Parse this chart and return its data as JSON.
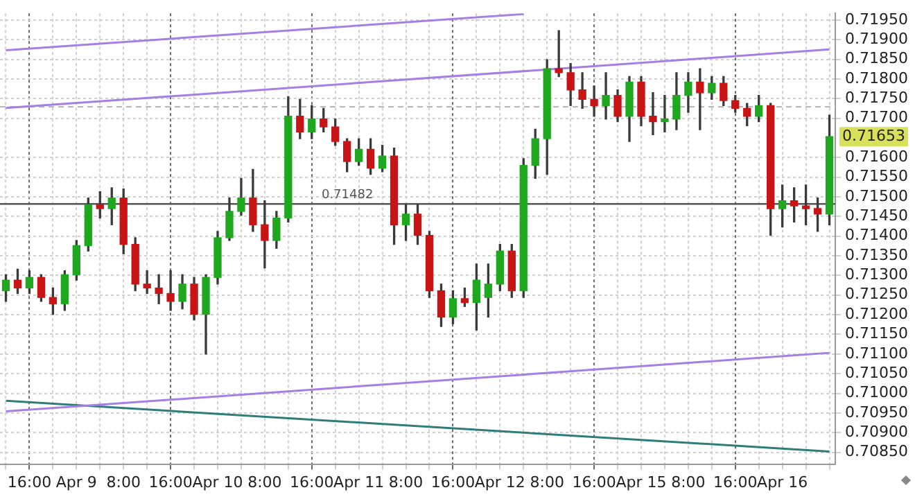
{
  "chart_data": {
    "type": "candlestick",
    "categories": [
      null,
      null,
      "16:00",
      null,
      null,
      null,
      "Apr 9",
      null,
      null,
      null,
      "8:00",
      null,
      null,
      null,
      "16:00",
      null,
      null,
      null,
      "Apr 10",
      null,
      null,
      null,
      "8:00",
      null,
      null,
      null,
      "16:00",
      null,
      null,
      null,
      "Apr 11",
      null,
      null,
      null,
      "8:00",
      null,
      null,
      null,
      "16:00",
      null,
      null,
      null,
      "Apr 12",
      null,
      null,
      null,
      "8:00",
      null,
      null,
      null,
      "16:00",
      null,
      null,
      null,
      "Apr 15",
      null,
      null,
      null,
      "8:00",
      null,
      null,
      null,
      "16:00",
      null,
      null,
      null,
      "Apr 16",
      null,
      null,
      null,
      null
    ],
    "ohlc": [
      [
        0.71261,
        0.71302,
        0.71234,
        0.71288
      ],
      [
        0.71288,
        0.71316,
        0.71254,
        0.71268
      ],
      [
        0.71268,
        0.71312,
        0.71254,
        0.71295
      ],
      [
        0.71295,
        0.71302,
        0.71234,
        0.71244
      ],
      [
        0.71244,
        0.71268,
        0.71201,
        0.71228
      ],
      [
        0.71228,
        0.71312,
        0.71211,
        0.71302
      ],
      [
        0.71302,
        0.71389,
        0.71288,
        0.71376
      ],
      [
        0.71376,
        0.71497,
        0.71362,
        0.7148
      ],
      [
        0.7148,
        0.71513,
        0.71446,
        0.7147
      ],
      [
        0.7147,
        0.71523,
        0.71429,
        0.71497
      ],
      [
        0.71497,
        0.7152,
        0.71355,
        0.71379
      ],
      [
        0.71379,
        0.71396,
        0.71261,
        0.71278
      ],
      [
        0.71278,
        0.71312,
        0.71254,
        0.71268
      ],
      [
        0.71268,
        0.71302,
        0.71228,
        0.71254
      ],
      [
        0.71254,
        0.71312,
        0.71211,
        0.71234
      ],
      [
        0.71234,
        0.71302,
        0.71215,
        0.71278
      ],
      [
        0.71278,
        0.71295,
        0.71187,
        0.71201
      ],
      [
        0.71201,
        0.71302,
        0.711,
        0.71295
      ],
      [
        0.71295,
        0.71412,
        0.71278,
        0.71396
      ],
      [
        0.71396,
        0.71497,
        0.71389,
        0.71463
      ],
      [
        0.71463,
        0.71547,
        0.71453,
        0.71497
      ],
      [
        0.71497,
        0.7157,
        0.71412,
        0.71429
      ],
      [
        0.71429,
        0.7149,
        0.71319,
        0.71389
      ],
      [
        0.71389,
        0.71463,
        0.71369,
        0.71446
      ],
      [
        0.71446,
        0.71755,
        0.71436,
        0.71705
      ],
      [
        0.71705,
        0.71748,
        0.71648,
        0.71665
      ],
      [
        0.71665,
        0.71732,
        0.71648,
        0.71698
      ],
      [
        0.71698,
        0.71725,
        0.71665,
        0.71678
      ],
      [
        0.71678,
        0.71698,
        0.71631,
        0.71641
      ],
      [
        0.71641,
        0.71648,
        0.71564,
        0.7159
      ],
      [
        0.7159,
        0.71648,
        0.7158,
        0.71621
      ],
      [
        0.71621,
        0.71648,
        0.71557,
        0.71573
      ],
      [
        0.71573,
        0.71631,
        0.71564,
        0.71604
      ],
      [
        0.71604,
        0.71624,
        0.71379,
        0.71429
      ],
      [
        0.71429,
        0.7148,
        0.71389,
        0.71456
      ],
      [
        0.71456,
        0.7148,
        0.71379,
        0.71402
      ],
      [
        0.71402,
        0.71412,
        0.71244,
        0.71261
      ],
      [
        0.71261,
        0.71278,
        0.7117,
        0.71194
      ],
      [
        0.71194,
        0.71261,
        0.71177,
        0.71241
      ],
      [
        0.71241,
        0.71268,
        0.71221,
        0.71231
      ],
      [
        0.71231,
        0.71329,
        0.71161,
        0.71288
      ],
      [
        0.71244,
        0.71329,
        0.71194,
        0.71278
      ],
      [
        0.71278,
        0.71379,
        0.71261,
        0.71362
      ],
      [
        0.71362,
        0.71379,
        0.71244,
        0.71261
      ],
      [
        0.71261,
        0.71597,
        0.71244,
        0.7158
      ],
      [
        0.7158,
        0.71672,
        0.71547,
        0.71648
      ],
      [
        0.71648,
        0.71849,
        0.71557,
        0.71826
      ],
      [
        0.71826,
        0.71923,
        0.71806,
        0.71816
      ],
      [
        0.71816,
        0.71839,
        0.71732,
        0.71772
      ],
      [
        0.71772,
        0.71816,
        0.71725,
        0.71748
      ],
      [
        0.71748,
        0.71782,
        0.71705,
        0.71732
      ],
      [
        0.71732,
        0.71816,
        0.71698,
        0.71758
      ],
      [
        0.71758,
        0.71772,
        0.71691,
        0.71705
      ],
      [
        0.71705,
        0.71806,
        0.71641,
        0.71792
      ],
      [
        0.71792,
        0.71806,
        0.71681,
        0.71705
      ],
      [
        0.71705,
        0.71765,
        0.71658,
        0.71691
      ],
      [
        0.71691,
        0.71758,
        0.71665,
        0.71698
      ],
      [
        0.71698,
        0.71816,
        0.71671,
        0.71758
      ],
      [
        0.71758,
        0.71816,
        0.71715,
        0.71792
      ],
      [
        0.71792,
        0.71826,
        0.71671,
        0.71765
      ],
      [
        0.71765,
        0.71806,
        0.71748,
        0.71789
      ],
      [
        0.71789,
        0.71806,
        0.71732,
        0.71745
      ],
      [
        0.71745,
        0.71758,
        0.71715,
        0.71725
      ],
      [
        0.71725,
        0.71738,
        0.71681,
        0.71705
      ],
      [
        0.71705,
        0.71758,
        0.71691,
        0.71732
      ],
      [
        0.71732,
        0.71738,
        0.71402,
        0.7147
      ],
      [
        0.7147,
        0.7153,
        0.71423,
        0.7149
      ],
      [
        0.7149,
        0.71523,
        0.71436,
        0.71477
      ],
      [
        0.71477,
        0.7153,
        0.71429,
        0.7147
      ],
      [
        0.7147,
        0.71497,
        0.71412,
        0.71456
      ],
      [
        0.71456,
        0.71708,
        0.71429,
        0.71653
      ]
    ],
    "series": [
      {
        "type": "line",
        "color": "#a67fe6",
        "values": [
          0.71873,
          null,
          null,
          null,
          null,
          null,
          null,
          null,
          null,
          null,
          null,
          null,
          null,
          null,
          null,
          null,
          null,
          null,
          null,
          null,
          null,
          null,
          null,
          null,
          null,
          null,
          null,
          null,
          null,
          null,
          null,
          null,
          null,
          null,
          null,
          null,
          null,
          null,
          null,
          null,
          null,
          null,
          null,
          null,
          0.71965,
          null,
          null,
          null,
          null,
          null,
          null,
          null,
          null,
          null,
          null,
          null,
          null,
          null,
          null,
          null,
          null,
          null,
          null,
          null,
          null,
          null,
          null,
          null,
          null,
          null,
          null
        ]
      },
      {
        "type": "line",
        "color": "#a67fe6",
        "values": [
          0.71726,
          null,
          null,
          null,
          null,
          null,
          null,
          null,
          null,
          null,
          null,
          null,
          null,
          null,
          null,
          null,
          null,
          null,
          null,
          null,
          null,
          null,
          null,
          null,
          null,
          null,
          null,
          null,
          null,
          null,
          null,
          null,
          null,
          null,
          null,
          null,
          null,
          null,
          null,
          null,
          null,
          null,
          null,
          null,
          null,
          null,
          null,
          null,
          null,
          null,
          null,
          null,
          null,
          null,
          null,
          null,
          null,
          null,
          null,
          null,
          null,
          null,
          null,
          null,
          null,
          null,
          null,
          null,
          null,
          null,
          0.71875
        ]
      },
      {
        "type": "line",
        "color": "#a67fe6",
        "values": [
          0.70954,
          null,
          null,
          null,
          null,
          null,
          null,
          null,
          null,
          null,
          null,
          null,
          null,
          null,
          null,
          null,
          null,
          null,
          null,
          null,
          null,
          null,
          null,
          null,
          null,
          null,
          null,
          null,
          null,
          null,
          null,
          null,
          null,
          null,
          null,
          null,
          null,
          null,
          null,
          null,
          null,
          null,
          null,
          null,
          null,
          null,
          null,
          null,
          null,
          null,
          null,
          null,
          null,
          null,
          null,
          null,
          null,
          null,
          null,
          null,
          null,
          null,
          null,
          null,
          null,
          null,
          null,
          null,
          null,
          null,
          0.71103
        ]
      },
      {
        "type": "line",
        "color": "#2e7d7a",
        "values": [
          0.70981,
          null,
          null,
          null,
          null,
          null,
          null,
          null,
          null,
          null,
          null,
          null,
          null,
          null,
          null,
          null,
          null,
          null,
          null,
          null,
          null,
          null,
          null,
          null,
          null,
          null,
          null,
          null,
          null,
          null,
          null,
          null,
          null,
          null,
          null,
          null,
          null,
          null,
          null,
          null,
          null,
          null,
          null,
          null,
          null,
          null,
          null,
          null,
          null,
          null,
          null,
          null,
          null,
          null,
          null,
          null,
          null,
          null,
          null,
          null,
          null,
          null,
          null,
          null,
          null,
          null,
          null,
          null,
          null,
          null,
          0.70852
        ]
      }
    ],
    "ylim": [
      0.7082,
      0.71967
    ],
    "yticks": [
      {
        "value": 0.7085,
        "label": "0.70850"
      },
      {
        "value": 0.709,
        "label": "0.70900"
      },
      {
        "value": 0.7095,
        "label": "0.70950"
      },
      {
        "value": 0.71,
        "label": "0.71000"
      },
      {
        "value": 0.7105,
        "label": "0.71050"
      },
      {
        "value": 0.711,
        "label": "0.71100"
      },
      {
        "value": 0.7115,
        "label": "0.71150"
      },
      {
        "value": 0.712,
        "label": "0.71200"
      },
      {
        "value": 0.7125,
        "label": "0.71250"
      },
      {
        "value": 0.713,
        "label": "0.71300"
      },
      {
        "value": 0.7135,
        "label": "0.71350"
      },
      {
        "value": 0.714,
        "label": "0.71400"
      },
      {
        "value": 0.7145,
        "label": "0.71450"
      },
      {
        "value": 0.715,
        "label": "0.71500"
      },
      {
        "value": 0.7155,
        "label": "0.71550"
      },
      {
        "value": 0.716,
        "label": "0.71600"
      },
      {
        "value": 0.717,
        "label": "0.71700"
      },
      {
        "value": 0.7175,
        "label": "0.71750"
      },
      {
        "value": 0.718,
        "label": "0.71800"
      },
      {
        "value": 0.7185,
        "label": "0.71850"
      },
      {
        "value": 0.719,
        "label": "0.71900"
      },
      {
        "value": 0.7195,
        "label": "0.71950"
      }
    ],
    "grid": true,
    "ref_lines": [
      {
        "axis": "y",
        "value": 0.71482,
        "label": "0.71482",
        "color": "#555555"
      },
      {
        "axis": "y",
        "value": 0.71729,
        "color": "#bbbbbb",
        "line_style": "dashed"
      }
    ],
    "annotations": [
      "0.71653"
    ]
  }
}
